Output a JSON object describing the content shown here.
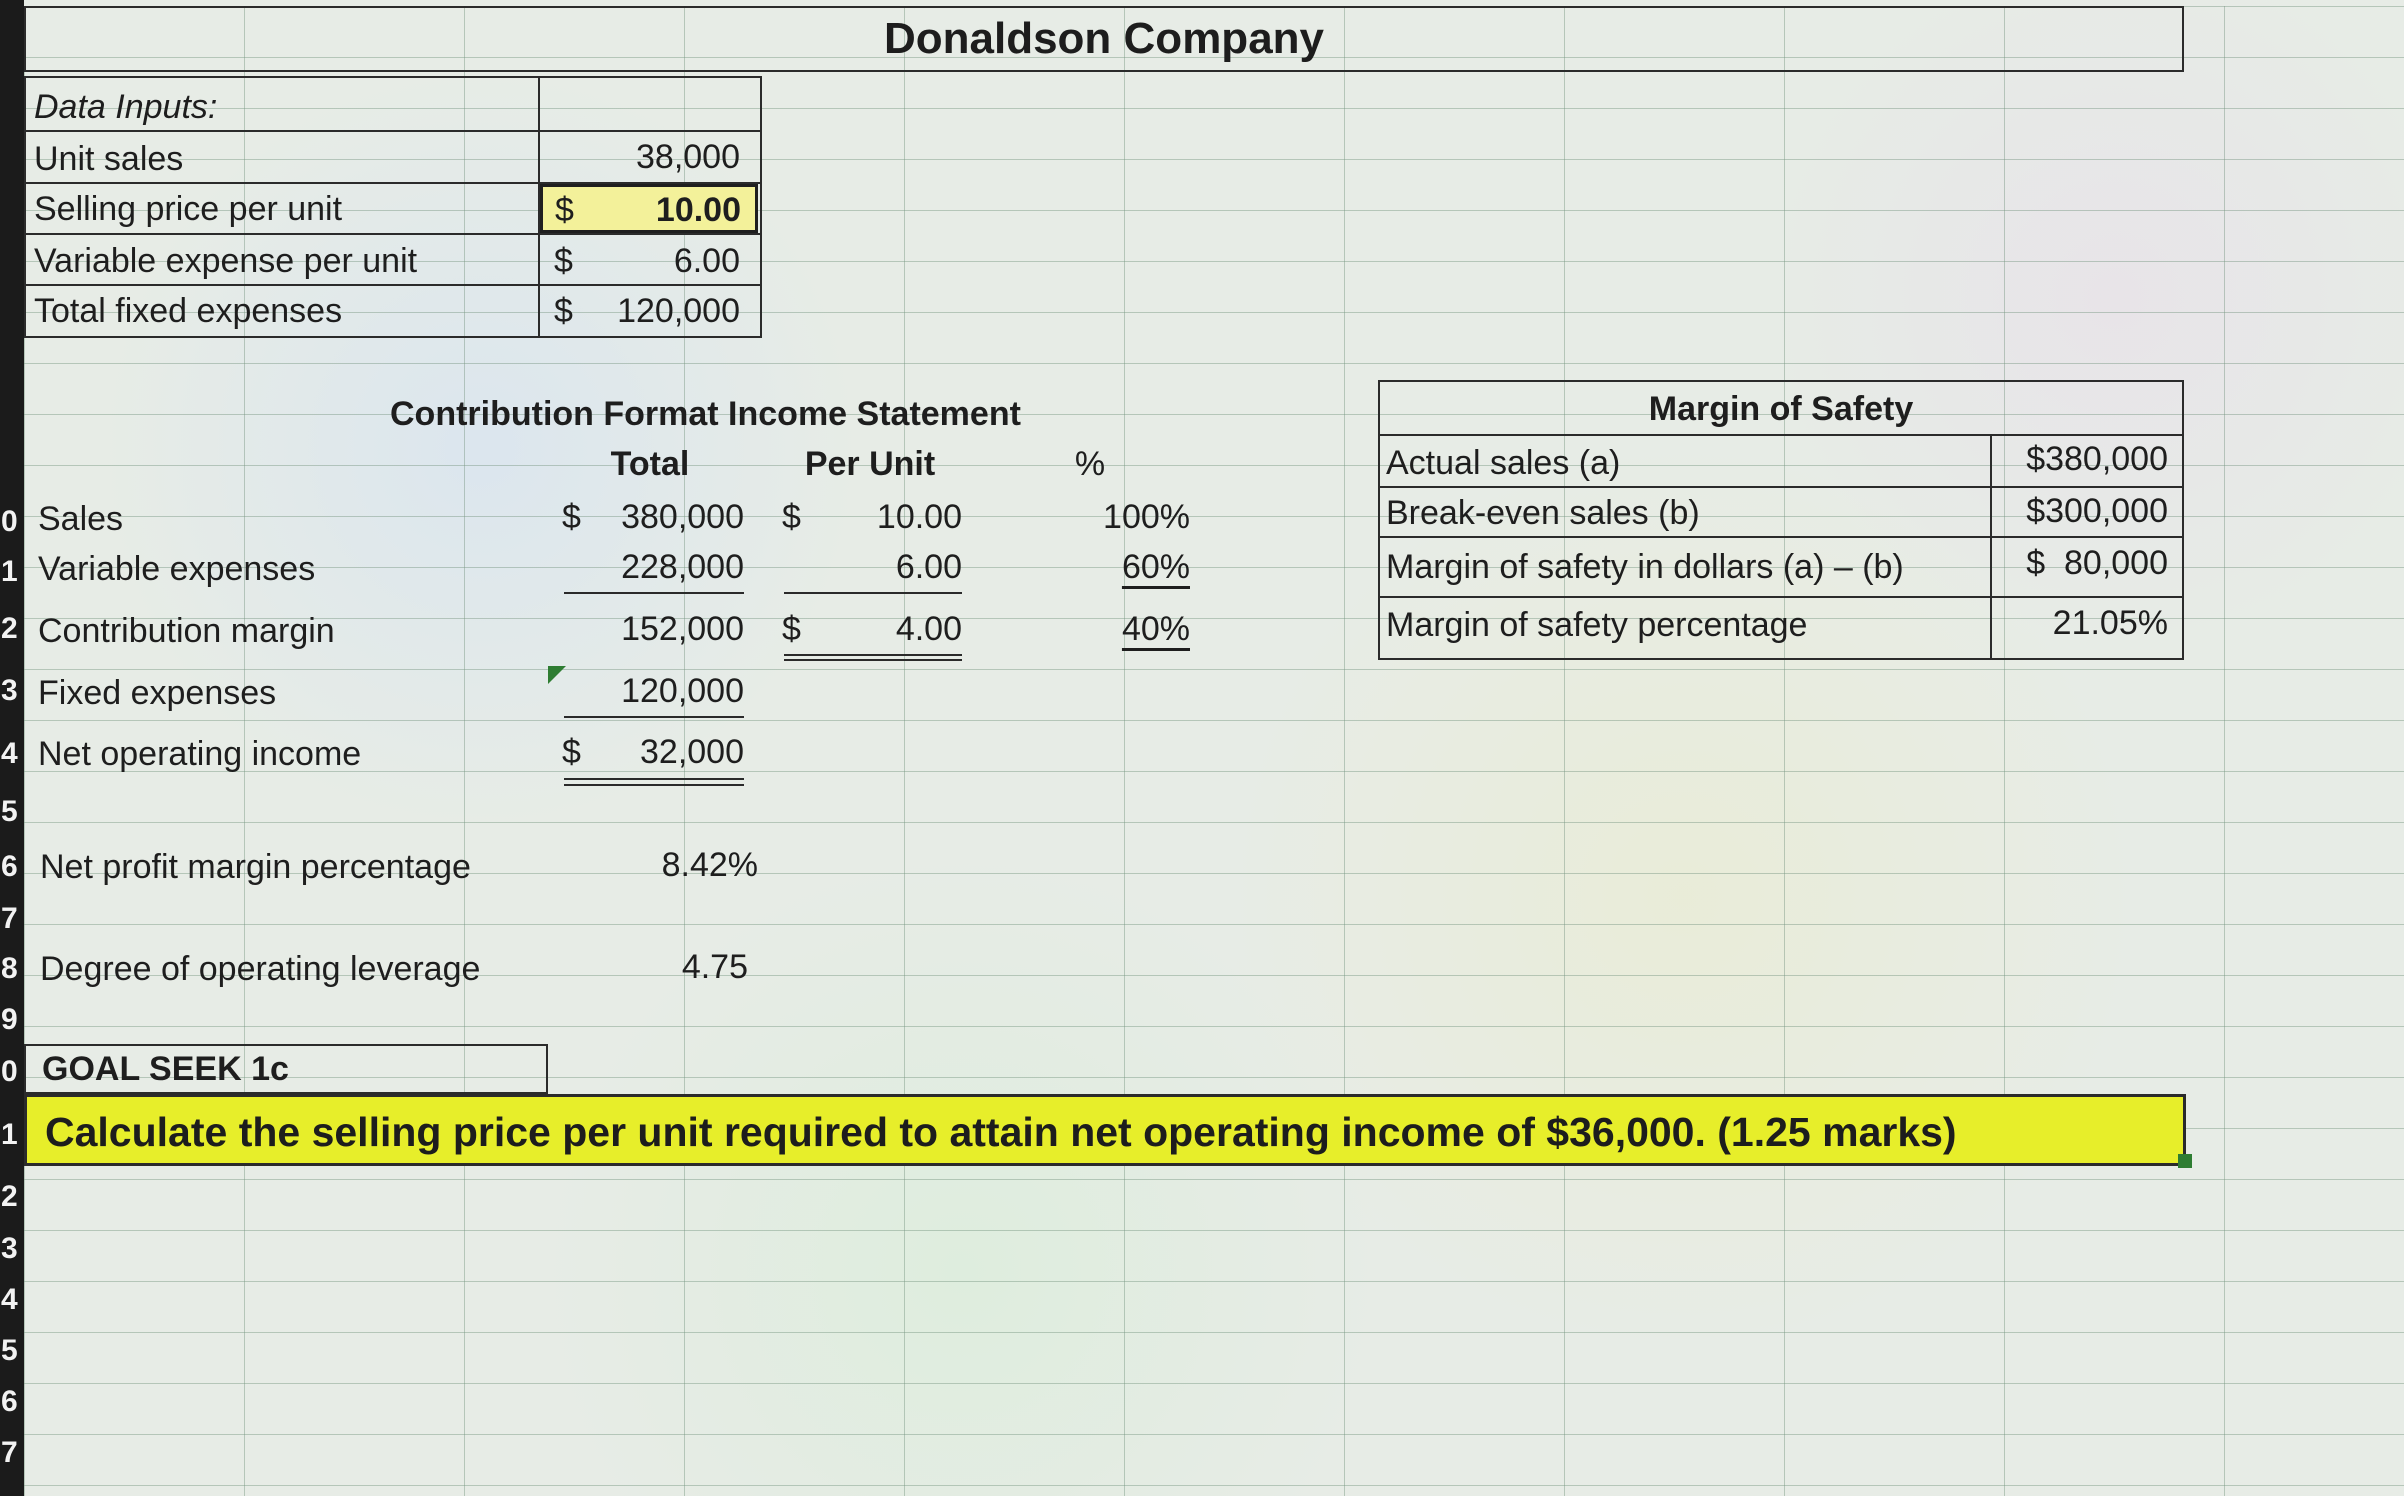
{
  "title": "Donaldson Company",
  "data_inputs": {
    "header": "Data Inputs:",
    "rows": [
      {
        "label": "Unit sales",
        "sym": "",
        "value": "38,000"
      },
      {
        "label": "Selling price per unit",
        "sym": "$",
        "value": "10.00"
      },
      {
        "label": "Variable expense per unit",
        "sym": "$",
        "value": "6.00"
      },
      {
        "label": "Total fixed expenses",
        "sym": "$",
        "value": "120,000"
      }
    ]
  },
  "income_statement": {
    "title": "Contribution Format Income Statement",
    "col_total": "Total",
    "col_per_unit": "Per Unit",
    "col_pct": "%",
    "rows": [
      {
        "label": "Sales",
        "total_sym": "$",
        "total": "380,000",
        "pu_sym": "$",
        "per_unit": "10.00",
        "pct": "100%"
      },
      {
        "label": "Variable expenses",
        "total_sym": "",
        "total": "228,000",
        "pu_sym": "",
        "per_unit": "6.00",
        "pct": "60%"
      },
      {
        "label": "Contribution margin",
        "total_sym": "",
        "total": "152,000",
        "pu_sym": "$",
        "per_unit": "4.00",
        "pct": "40%"
      },
      {
        "label": "Fixed expenses",
        "total_sym": "",
        "total": "120,000",
        "pu_sym": "",
        "per_unit": "",
        "pct": ""
      },
      {
        "label": "Net operating income",
        "total_sym": "$",
        "total": "32,000",
        "pu_sym": "",
        "per_unit": "",
        "pct": ""
      }
    ]
  },
  "ratios": [
    {
      "label": "Net profit margin percentage",
      "value": "8.42%"
    },
    {
      "label": "Degree of operating leverage",
      "value": "4.75"
    }
  ],
  "margin_of_safety": {
    "title": "Margin of Safety",
    "rows": [
      {
        "label": "Actual sales (a)",
        "value": "$380,000"
      },
      {
        "label": "Break-even sales (b)",
        "value": "$300,000"
      },
      {
        "label": "Margin of safety in dollars (a) – (b)",
        "value": "$  80,000"
      },
      {
        "label": "Margin of safety percentage",
        "value": "21.05%"
      }
    ]
  },
  "goal_seek": {
    "label": "GOAL SEEK 1c",
    "prompt": "Calculate the selling price per unit required to attain net operating income of $36,000. (1.25 marks)"
  },
  "row_numbers": [
    "0",
    "1",
    "2",
    "3",
    "4",
    "5",
    "6",
    "7",
    "8",
    "9",
    "0",
    "1",
    "2",
    "3",
    "4",
    "5",
    "6",
    "7"
  ],
  "colors": {
    "highlight_yellow": "#e7ee2a",
    "selected_cell": "#f3f19a",
    "fill_handle": "#2e7d32"
  }
}
